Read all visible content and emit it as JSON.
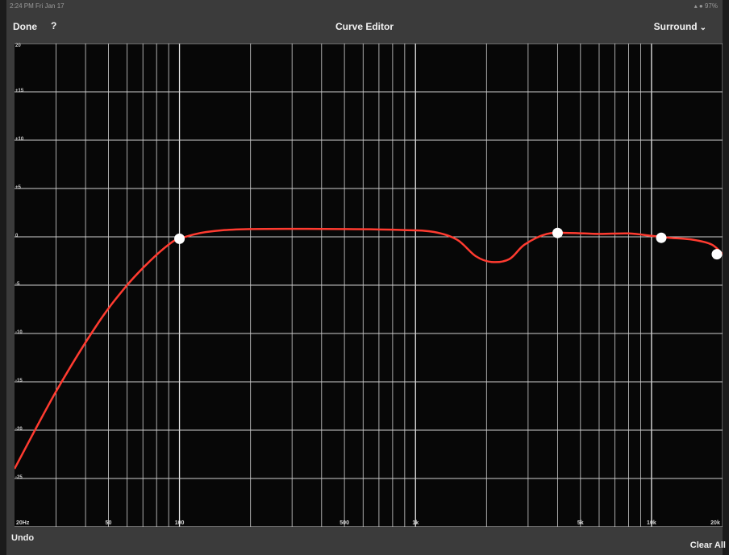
{
  "status_bar": {
    "time": "2:24 PM",
    "date": "Fri Jan 17",
    "indicators": "▴ ● 97%"
  },
  "nav": {
    "done_label": "Done",
    "help_label": "?",
    "title": "Curve Editor",
    "channel_label": "Surround",
    "channel_icon": "chevron-down-icon"
  },
  "graph": {
    "y_tick_labels": [
      "20",
      "+15",
      "+10",
      "+5",
      "0",
      "-5",
      "-10",
      "-15",
      "-20",
      "-25"
    ],
    "x_tick_labels": [
      "20Hz",
      "50",
      "100",
      "500",
      "1k",
      "5k",
      "10k",
      "20k"
    ],
    "y_range_db": [
      -30,
      20
    ],
    "x_range_hz": [
      20,
      20000
    ],
    "x_scale": "log",
    "grid": true,
    "curve_color": "#ff3b30",
    "handle_color": "#ffffff",
    "curve_points": [
      [
        20,
        -24
      ],
      [
        30,
        -16
      ],
      [
        45,
        -9
      ],
      [
        60,
        -5
      ],
      [
        75,
        -2.5
      ],
      [
        90,
        -0.8
      ],
      [
        100,
        -0.2
      ],
      [
        130,
        0.5
      ],
      [
        200,
        0.8
      ],
      [
        500,
        0.8
      ],
      [
        900,
        0.7
      ],
      [
        1200,
        0.5
      ],
      [
        1500,
        -0.3
      ],
      [
        1800,
        -2
      ],
      [
        2100,
        -2.6
      ],
      [
        2500,
        -2.3
      ],
      [
        2900,
        -0.8
      ],
      [
        3600,
        0.3
      ],
      [
        4500,
        0.4
      ],
      [
        6000,
        0.3
      ],
      [
        8000,
        0.35
      ],
      [
        10000,
        0.1
      ],
      [
        12000,
        -0.1
      ],
      [
        15000,
        -0.3
      ],
      [
        18000,
        -0.8
      ],
      [
        20000,
        -1.8
      ]
    ],
    "handles": [
      {
        "freq_hz": 100,
        "gain_db": -0.2
      },
      {
        "freq_hz": 4000,
        "gain_db": 0.4
      },
      {
        "freq_hz": 11000,
        "gain_db": -0.1
      },
      {
        "freq_hz": 20000,
        "gain_db": -1.8
      }
    ]
  },
  "bottom": {
    "undo_label": "Undo",
    "clear_all_label": "Clear All"
  }
}
